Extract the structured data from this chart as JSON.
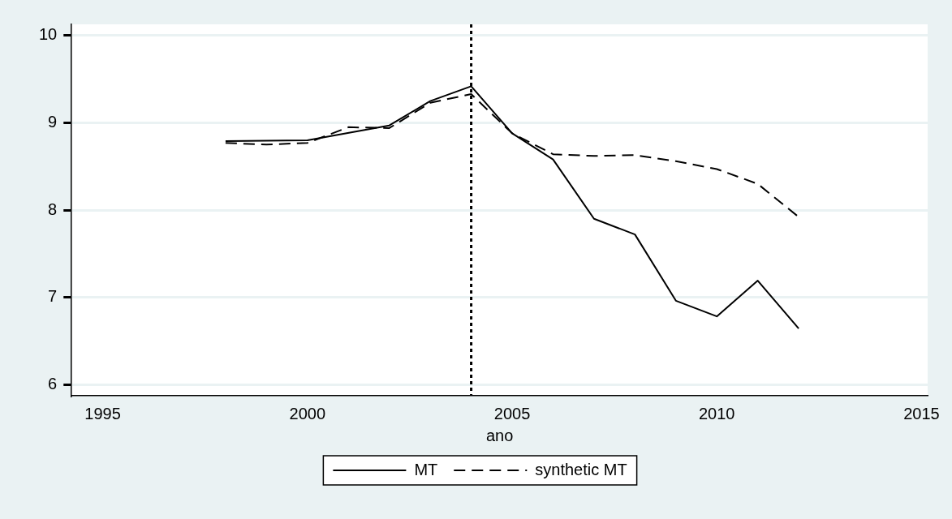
{
  "chart_data": {
    "type": "line",
    "xlabel": "ano",
    "xlim": [
      1994.24,
      2015.15
    ],
    "xticks": [
      1995,
      2000,
      2005,
      2010,
      2015
    ],
    "ylim": [
      5.87,
      10.13
    ],
    "yticks": [
      6,
      7,
      8,
      9,
      10
    ],
    "grid": "y",
    "legend": "bottom",
    "marker": "none",
    "ref_lines": [
      {
        "axis": "x",
        "value": 2004,
        "color": "#000000",
        "line_style": "dotted"
      }
    ],
    "series": [
      {
        "name": "MT",
        "color": "#000000",
        "line_style": "solid",
        "x": [
          1998,
          2000,
          2002,
          2003,
          2004,
          2005,
          2006,
          2007,
          2008,
          2009,
          2010,
          2011,
          2012
        ],
        "values": [
          8.79,
          8.8,
          8.97,
          9.25,
          9.42,
          8.88,
          8.58,
          7.9,
          7.72,
          6.96,
          6.78,
          7.19,
          6.64
        ]
      },
      {
        "name": "synthetic MT",
        "color": "#000000",
        "line_style": "dashed",
        "x": [
          1998,
          1999,
          2000,
          2001,
          2002,
          2003,
          2004,
          2005,
          2006,
          2007,
          2008,
          2009,
          2010,
          2011,
          2012
        ],
        "values": [
          8.77,
          8.75,
          8.77,
          8.95,
          8.94,
          9.23,
          9.33,
          8.88,
          8.64,
          8.62,
          8.63,
          8.56,
          8.47,
          8.3,
          7.92
        ]
      }
    ]
  }
}
